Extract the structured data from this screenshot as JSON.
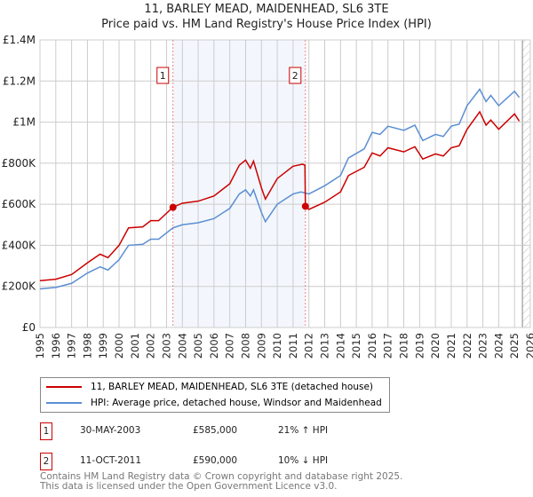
{
  "chart_data": {
    "type": "line",
    "title": "11, BARLEY MEAD, MAIDENHEAD, SL6 3TE",
    "subtitle": "Price paid vs. HM Land Registry's House Price Index (HPI)",
    "xlim": [
      1995,
      2026
    ],
    "ylim": [
      0,
      1400000
    ],
    "x_ticks": [
      "1995",
      "1996",
      "1997",
      "1998",
      "1999",
      "2000",
      "2001",
      "2002",
      "2003",
      "2004",
      "2005",
      "2006",
      "2007",
      "2008",
      "2009",
      "2010",
      "2011",
      "2012",
      "2013",
      "2014",
      "2015",
      "2016",
      "2017",
      "2018",
      "2019",
      "2020",
      "2021",
      "2022",
      "2023",
      "2024",
      "2025",
      "2026"
    ],
    "y_ticks": [
      {
        "v": 0,
        "label": "£0"
      },
      {
        "v": 200000,
        "label": "£200K"
      },
      {
        "v": 400000,
        "label": "£400K"
      },
      {
        "v": 600000,
        "label": "£600K"
      },
      {
        "v": 800000,
        "label": "£800K"
      },
      {
        "v": 1000000,
        "label": "£1M"
      },
      {
        "v": 1200000,
        "label": "£1.2M"
      },
      {
        "v": 1400000,
        "label": "£1.4M"
      }
    ],
    "grid": true,
    "series": [
      {
        "name": "11, BARLEY MEAD, MAIDENHEAD, SL6 3TE (detached house)",
        "color": "#cc0000",
        "x": [
          1995,
          1996,
          1997,
          1998,
          1998.8,
          1999.3,
          2000,
          2000.6,
          2001.5,
          2002,
          2002.5,
          2003.4,
          2004,
          2005,
          2006,
          2007,
          2007.6,
          2008,
          2008.3,
          2008.5,
          2009,
          2009.25,
          2010,
          2011,
          2011.6,
          2011.75,
          2011.78,
          2012,
          2013,
          2014,
          2014.5,
          2015.5,
          2016,
          2016.5,
          2017,
          2018,
          2018.7,
          2019.2,
          2020,
          2020.5,
          2021,
          2021.5,
          2022,
          2022.8,
          2023.2,
          2023.5,
          2024,
          2025,
          2025.3
        ],
        "y": [
          228000,
          235000,
          258000,
          315000,
          357000,
          340000,
          400000,
          485000,
          490000,
          520000,
          520000,
          585000,
          605000,
          615000,
          640000,
          700000,
          790000,
          815000,
          775000,
          810000,
          680000,
          625000,
          725000,
          785000,
          795000,
          790000,
          590000,
          575000,
          610000,
          660000,
          740000,
          780000,
          850000,
          835000,
          875000,
          855000,
          880000,
          820000,
          845000,
          835000,
          875000,
          885000,
          965000,
          1050000,
          985000,
          1010000,
          965000,
          1040000,
          1005000
        ]
      },
      {
        "name": "HPI: Average price, detached house, Windsor and Maidenhead",
        "color": "#5b8fd4",
        "x": [
          1995,
          1996,
          1997,
          1998,
          1998.8,
          1999.3,
          2000,
          2000.6,
          2001.5,
          2002,
          2002.5,
          2003.4,
          2004,
          2005,
          2006,
          2007,
          2007.6,
          2008,
          2008.3,
          2008.5,
          2009,
          2009.25,
          2010,
          2011,
          2011.5,
          2012,
          2013,
          2014,
          2014.5,
          2015.5,
          2016,
          2016.5,
          2017,
          2018,
          2018.7,
          2019.2,
          2020,
          2020.5,
          2021,
          2021.5,
          2022,
          2022.8,
          2023.2,
          2023.5,
          2024,
          2025,
          2025.3
        ],
        "y": [
          188000,
          195000,
          215000,
          265000,
          295000,
          280000,
          330000,
          400000,
          405000,
          430000,
          430000,
          485000,
          500000,
          510000,
          530000,
          580000,
          650000,
          670000,
          640000,
          670000,
          560000,
          515000,
          600000,
          650000,
          660000,
          650000,
          690000,
          740000,
          825000,
          870000,
          950000,
          940000,
          980000,
          960000,
          985000,
          910000,
          940000,
          930000,
          980000,
          990000,
          1080000,
          1160000,
          1100000,
          1130000,
          1080000,
          1150000,
          1120000
        ]
      }
    ],
    "sales": [
      {
        "label": "1",
        "x": 2003.41,
        "y": 585000,
        "date": "30-MAY-2003",
        "price": "£585,000",
        "hpi": "21% ↑ HPI"
      },
      {
        "label": "2",
        "x": 2011.78,
        "y": 590000,
        "date": "11-OCT-2011",
        "price": "£590,000",
        "hpi": "10% ↓ HPI"
      }
    ],
    "forecast_start": 2025.5,
    "legend_placement": "below"
  },
  "footer": {
    "line1": "Contains HM Land Registry data © Crown copyright and database right 2025.",
    "line2": "This data is licensed under the Open Government Licence v3.0."
  }
}
